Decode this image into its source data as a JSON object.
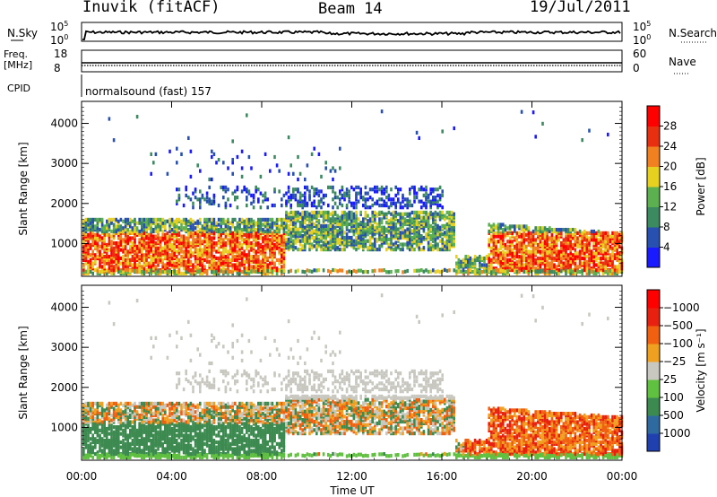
{
  "header": {
    "title": "Inuvik (fitACF)",
    "beam": "Beam 14",
    "date": "19/Jul/2011"
  },
  "top_panels": {
    "nsky_label": "N.Sky",
    "nsky_ticks": [
      "10^5",
      "10^0"
    ],
    "nsearch_label": "N.Search",
    "nsearch_ticks": [
      "10^5",
      "10^0"
    ],
    "freq_label_line1": "Freq.",
    "freq_label_line2": "[MHz]",
    "freq_ticks": [
      "18",
      "8"
    ],
    "nave_label": "Nave",
    "nave_ticks": [
      "60",
      "0"
    ],
    "cpid_label": "CPID",
    "cpid_text": "normalsound (fast) 157"
  },
  "chart_data": [
    {
      "type": "heatmap",
      "name": "power-panel",
      "ylabel": "Slant Range [km]",
      "yticks": [
        1000,
        2000,
        3000,
        4000
      ],
      "ylim": [
        180,
        4550
      ],
      "xlim": [
        0,
        24
      ],
      "colorbar": {
        "label": "Power [dB]",
        "ticks": [
          "4",
          "8",
          "12",
          "16",
          "20",
          "24",
          "28"
        ],
        "colors": [
          "#1a1aff",
          "#2850b0",
          "#3c8a60",
          "#5cb050",
          "#e8d020",
          "#f08020",
          "#e83010",
          "#ff0000"
        ]
      }
    },
    {
      "type": "heatmap",
      "name": "velocity-panel",
      "ylabel": "Slant Range [km]",
      "yticks": [
        1000,
        2000,
        3000,
        4000
      ],
      "ylim": [
        180,
        4550
      ],
      "xlim": [
        0,
        24
      ],
      "xticks": [
        "00:00",
        "04:00",
        "08:00",
        "12:00",
        "16:00",
        "20:00",
        "00:00"
      ],
      "xlabel": "Time UT",
      "colorbar": {
        "label": "Velocity [m s⁻¹]",
        "ticks": [
          "1000",
          "500",
          "100",
          "25",
          "−25",
          "−100",
          "−500",
          "−1000"
        ],
        "colors": [
          "#2040b0",
          "#2e6aa0",
          "#3c8a50",
          "#60c040",
          "#c8c8c0",
          "#f0a020",
          "#f06010",
          "#e82010",
          "#ff0000"
        ]
      }
    }
  ]
}
